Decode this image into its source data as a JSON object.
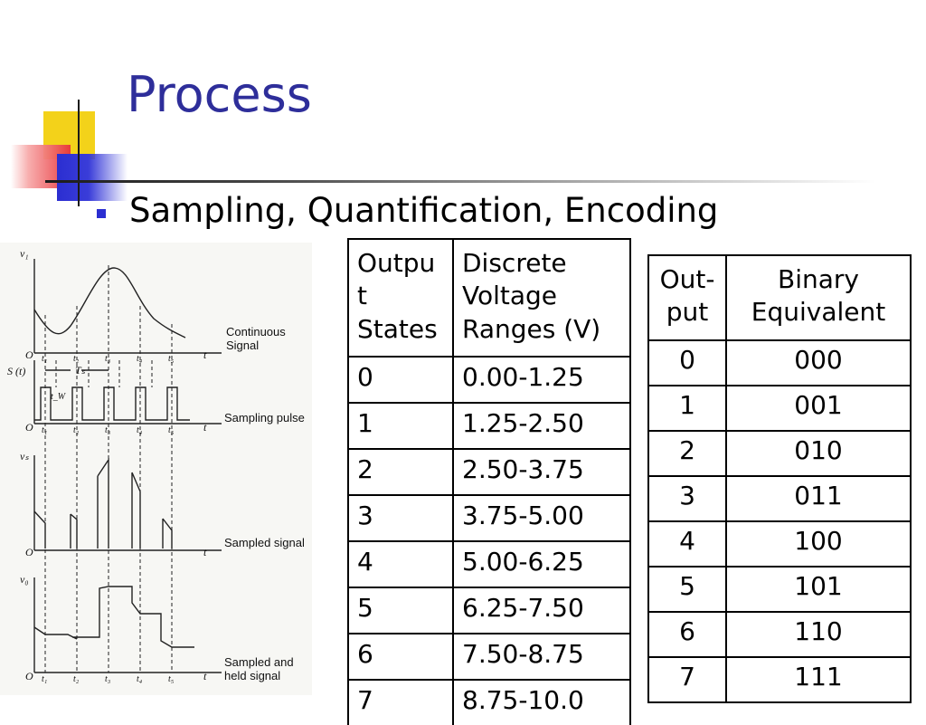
{
  "slide": {
    "title": "Process",
    "bullet": "Sampling, Quantification, Encoding"
  },
  "figure": {
    "labels": {
      "continuous_line1": "Continuous",
      "continuous_line2": "Signal",
      "sampling_pulse": "Sampling pulse",
      "sampled_signal": "Sampled signal",
      "held_line1": "Sampled and",
      "held_line2": "held signal"
    },
    "axis_names": {
      "v1": "v₁",
      "s": "S (t)",
      "vs": "vₛ",
      "vo": "v₀",
      "origin": "O",
      "t": "t",
      "ts": "Tₛ",
      "tw": "t_W"
    },
    "ticks": [
      "t₁",
      "t₂",
      "t₃",
      "t₄",
      "t₅"
    ]
  },
  "table_voltage": {
    "header": [
      "Output States",
      "Discrete Voltage Ranges (V)"
    ],
    "header_lines": [
      [
        "Outpu",
        "t",
        "States"
      ],
      [
        "Discrete",
        "Voltage",
        "Ranges (V)"
      ]
    ],
    "rows": [
      [
        "0",
        "0.00-1.25"
      ],
      [
        "1",
        "1.25-2.50"
      ],
      [
        "2",
        "2.50-3.75"
      ],
      [
        "3",
        "3.75-5.00"
      ],
      [
        "4",
        "5.00-6.25"
      ],
      [
        "5",
        "6.25-7.50"
      ],
      [
        "6",
        "7.50-8.75"
      ],
      [
        "7",
        "8.75-10.0"
      ]
    ]
  },
  "table_binary": {
    "header": [
      "Out-put",
      "Binary Equivalent"
    ],
    "header_lines": [
      [
        "Out-",
        "put"
      ],
      [
        "Binary",
        "Equivalent"
      ]
    ],
    "rows": [
      [
        "0",
        "000"
      ],
      [
        "1",
        "001"
      ],
      [
        "2",
        "010"
      ],
      [
        "3",
        "011"
      ],
      [
        "4",
        "100"
      ],
      [
        "5",
        "101"
      ],
      [
        "6",
        "110"
      ],
      [
        "7",
        "111"
      ]
    ]
  }
}
